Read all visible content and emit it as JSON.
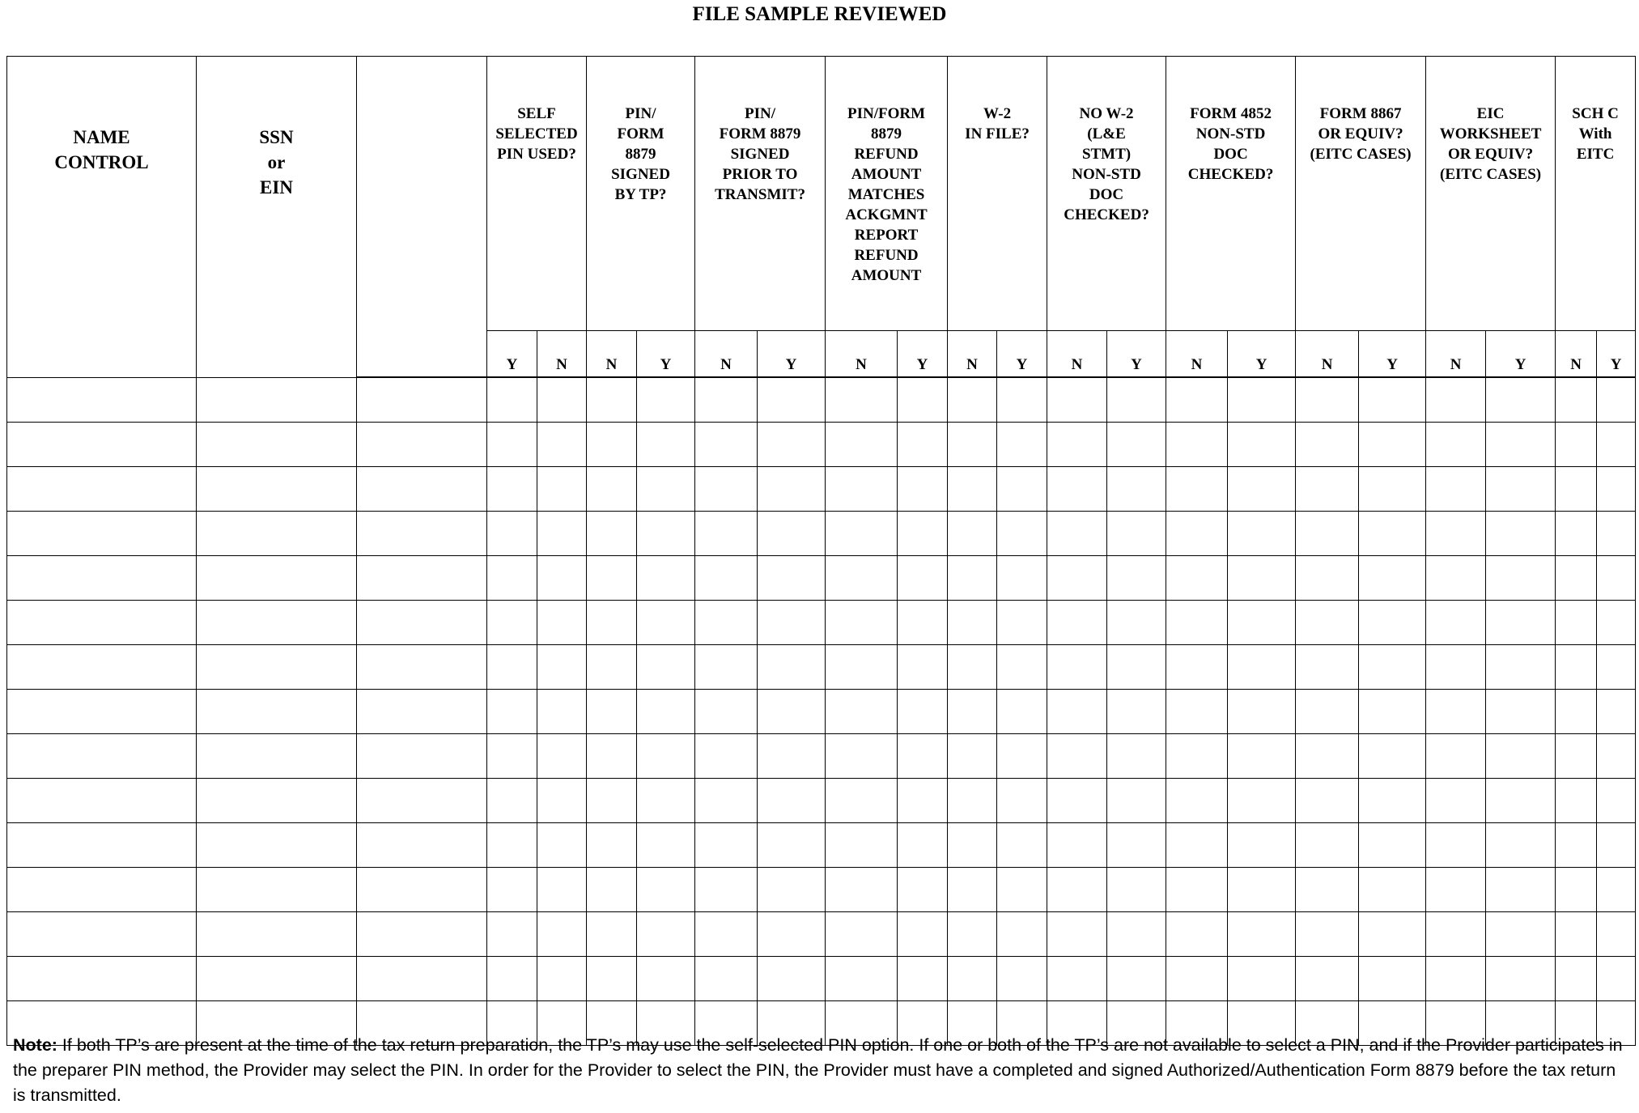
{
  "title": "FILE SAMPLE REVIEWED",
  "columns": {
    "name_control": "NAME\nCONTROL",
    "ssn_ein": "SSN\nor\nEIN",
    "blank": ""
  },
  "groups": [
    {
      "label": "SELF\nSELECTED\nPIN USED?",
      "sub": [
        "Y",
        "N"
      ]
    },
    {
      "label": "PIN/\nFORM\n8879\nSIGNED\nBY TP?",
      "sub": [
        "N",
        "Y"
      ]
    },
    {
      "label": "PIN/\nFORM 8879\nSIGNED\nPRIOR TO\nTRANSMIT?",
      "sub": [
        "N",
        "Y"
      ]
    },
    {
      "label": "PIN/FORM\n8879\nREFUND\nAMOUNT\nMATCHES\nACKGMNT\nREPORT\nREFUND\nAMOUNT",
      "sub": [
        "N",
        "Y"
      ]
    },
    {
      "label": "W-2\nIN FILE?",
      "sub": [
        "N",
        "Y"
      ]
    },
    {
      "label": "NO W-2\n(L&E\nSTMT)\nNON-STD\nDOC\nCHECKED?",
      "sub": [
        "N",
        "Y"
      ]
    },
    {
      "label": "FORM 4852\nNON-STD\nDOC\nCHECKED?",
      "sub": [
        "N",
        "Y"
      ]
    },
    {
      "label": "FORM 8867\nOR EQUIV?\n(EITC CASES)",
      "sub": [
        "N",
        "Y"
      ]
    },
    {
      "label": "EIC\nWORKSHEET\nOR EQUIV?\n(EITC CASES)",
      "sub": [
        "N",
        "Y"
      ]
    },
    {
      "label": "SCH C\nWith\nEITC",
      "sub": [
        "N",
        "Y"
      ]
    }
  ],
  "row_count": 15,
  "note": {
    "label": "Note:",
    "text": " If both TP’s are present at the time of the tax return preparation, the TP’s may use the self-selected PIN option. If one or both of the TP’s are not available to select a PIN, and if the Provider participates in the preparer PIN method, the Provider may select the PIN.  In order for the Provider to select the PIN, the Provider must have a completed and signed Authorized/Authentication Form 8879 before the tax return is transmitted."
  }
}
